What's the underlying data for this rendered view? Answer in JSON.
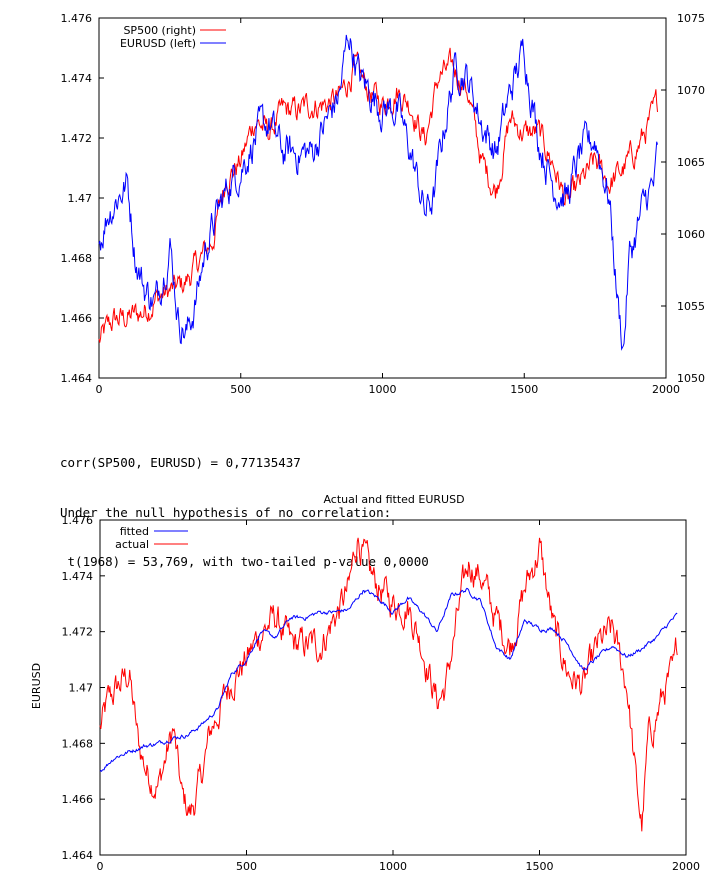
{
  "chart_data": [
    {
      "type": "line",
      "title": "",
      "xlabel": "",
      "ylabel_left": "",
      "ylabel_right": "",
      "xlim": [
        0,
        2000
      ],
      "ylim_left": [
        1.464,
        1.476
      ],
      "ylim_right": [
        1050,
        1075
      ],
      "x_ticks": [
        "0",
        "500",
        "1000",
        "1500",
        "2000"
      ],
      "y_ticks_left": [
        "1.464",
        "1.466",
        "1.468",
        "1.47",
        "1.472",
        "1.474",
        "1.476"
      ],
      "y_ticks_right": [
        "1050",
        "1055",
        "1060",
        "1065",
        "1070",
        "1075"
      ],
      "grid": false,
      "legend_position": "top-left",
      "n_points": 1970,
      "series": [
        {
          "name": "SP500 (right)",
          "axis": "right",
          "color": "#ff0000",
          "x": [
            0,
            50,
            100,
            150,
            200,
            250,
            300,
            350,
            400,
            450,
            500,
            550,
            600,
            650,
            700,
            750,
            800,
            850,
            900,
            950,
            1000,
            1050,
            1100,
            1150,
            1200,
            1250,
            1300,
            1350,
            1400,
            1450,
            1500,
            1550,
            1600,
            1650,
            1700,
            1750,
            1800,
            1850,
            1900,
            1950,
            1970
          ],
          "values": [
            1052.5,
            1054.0,
            1054.2,
            1054.5,
            1055.5,
            1056.0,
            1056.5,
            1058.0,
            1059.5,
            1064.0,
            1065.0,
            1068.0,
            1067.0,
            1068.5,
            1068.5,
            1069.0,
            1069.0,
            1069.5,
            1071.5,
            1070.0,
            1069.0,
            1070.0,
            1069.0,
            1066.5,
            1071.0,
            1071.5,
            1070.0,
            1065.0,
            1063.0,
            1068.0,
            1067.0,
            1067.0,
            1065.0,
            1062.0,
            1063.5,
            1065.0,
            1063.5,
            1064.5,
            1066.0,
            1068.0,
            1069.0
          ]
        },
        {
          "name": "EURUSD (left)",
          "axis": "left",
          "color": "#0000ff",
          "x": [
            0,
            30,
            60,
            100,
            130,
            160,
            200,
            250,
            280,
            310,
            340,
            380,
            420,
            460,
            500,
            550,
            600,
            650,
            700,
            750,
            800,
            850,
            880,
            920,
            960,
            1000,
            1050,
            1100,
            1150,
            1180,
            1220,
            1260,
            1300,
            1350,
            1400,
            1450,
            1500,
            1550,
            1600,
            1650,
            1700,
            1750,
            1800,
            1830,
            1850,
            1870,
            1900,
            1930,
            1960,
            1970
          ],
          "values": [
            1.4685,
            1.4695,
            1.47,
            1.4705,
            1.468,
            1.467,
            1.4665,
            1.4685,
            1.466,
            1.4655,
            1.4665,
            1.4685,
            1.4695,
            1.4705,
            1.471,
            1.472,
            1.4725,
            1.4715,
            1.4715,
            1.4715,
            1.4725,
            1.4735,
            1.4755,
            1.474,
            1.4735,
            1.473,
            1.473,
            1.4715,
            1.4695,
            1.47,
            1.4725,
            1.4745,
            1.474,
            1.4725,
            1.4715,
            1.4735,
            1.475,
            1.472,
            1.4705,
            1.47,
            1.4715,
            1.472,
            1.47,
            1.4665,
            1.465,
            1.468,
            1.469,
            1.47,
            1.4705,
            1.4715
          ]
        }
      ]
    },
    {
      "type": "line",
      "title": "Actual and fitted EURUSD",
      "xlabel": "",
      "ylabel": "EURUSD",
      "xlim": [
        0,
        2000
      ],
      "ylim": [
        1.464,
        1.476
      ],
      "x_ticks": [
        "0",
        "500",
        "1000",
        "1500",
        "2000"
      ],
      "y_ticks": [
        "1.464",
        "1.466",
        "1.468",
        "1.47",
        "1.472",
        "1.474",
        "1.476"
      ],
      "grid": false,
      "legend_position": "top-left",
      "series": [
        {
          "name": "fitted",
          "color": "#0000ff",
          "x": [
            0,
            50,
            100,
            150,
            200,
            250,
            300,
            350,
            400,
            450,
            500,
            550,
            600,
            650,
            700,
            750,
            800,
            850,
            900,
            950,
            1000,
            1050,
            1100,
            1150,
            1200,
            1250,
            1300,
            1350,
            1400,
            1450,
            1500,
            1550,
            1600,
            1650,
            1700,
            1750,
            1800,
            1850,
            1900,
            1950,
            1970
          ],
          "values": [
            1.467,
            1.4675,
            1.4677,
            1.4679,
            1.468,
            1.4682,
            1.4683,
            1.4687,
            1.4692,
            1.4705,
            1.471,
            1.472,
            1.4718,
            1.4725,
            1.4725,
            1.4727,
            1.4727,
            1.4728,
            1.4735,
            1.4732,
            1.4727,
            1.4732,
            1.4727,
            1.472,
            1.4733,
            1.4735,
            1.4731,
            1.4715,
            1.471,
            1.4724,
            1.4721,
            1.4721,
            1.4715,
            1.4706,
            1.4711,
            1.4715,
            1.4711,
            1.4714,
            1.4718,
            1.4724,
            1.4726
          ]
        },
        {
          "name": "actual",
          "color": "#ff0000",
          "x": [
            0,
            30,
            60,
            100,
            130,
            160,
            200,
            250,
            280,
            310,
            340,
            380,
            420,
            460,
            500,
            550,
            600,
            650,
            700,
            750,
            800,
            850,
            880,
            920,
            960,
            1000,
            1050,
            1100,
            1150,
            1180,
            1220,
            1260,
            1300,
            1350,
            1400,
            1450,
            1500,
            1550,
            1600,
            1650,
            1700,
            1750,
            1800,
            1830,
            1850,
            1870,
            1900,
            1930,
            1960,
            1970
          ],
          "values": [
            1.4685,
            1.4695,
            1.47,
            1.4705,
            1.468,
            1.467,
            1.4665,
            1.4685,
            1.466,
            1.4655,
            1.4665,
            1.4685,
            1.4695,
            1.4705,
            1.471,
            1.472,
            1.4725,
            1.4715,
            1.4715,
            1.4715,
            1.4725,
            1.4735,
            1.4755,
            1.474,
            1.4735,
            1.473,
            1.473,
            1.4715,
            1.4695,
            1.47,
            1.4725,
            1.4745,
            1.474,
            1.4725,
            1.4715,
            1.4735,
            1.475,
            1.472,
            1.4705,
            1.47,
            1.4715,
            1.472,
            1.47,
            1.4665,
            1.465,
            1.468,
            1.469,
            1.47,
            1.4705,
            1.4715
          ]
        }
      ]
    }
  ],
  "stats": {
    "line1": "corr(SP500, EURUSD) = 0,77135437",
    "line2": "Under the null hypothesis of no correlation:",
    "line3": " t(1968) = 53,769, with two-tailed p-value 0,0000"
  }
}
